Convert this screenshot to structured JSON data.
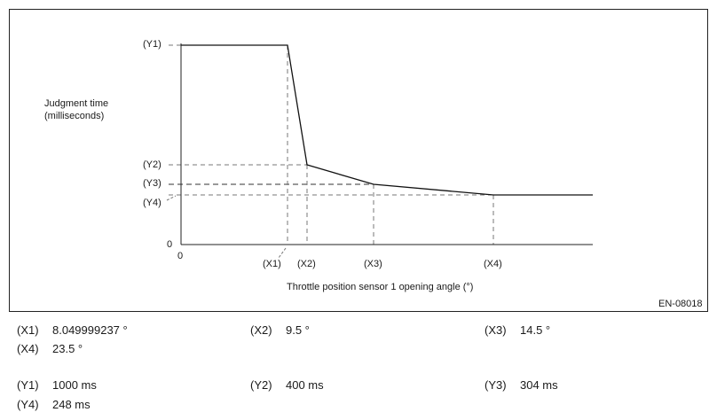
{
  "chart_data": {
    "type": "line",
    "figure_id": "EN-08018",
    "ylabel_lines": [
      "Judgment time",
      "(milliseconds)"
    ],
    "xlabel": "Throttle position sensor 1 opening angle (°)",
    "origin_x_label": "0",
    "origin_y_label": "0",
    "x_tick_labels": [
      "(X1)",
      "(X2)",
      "(X3)",
      "(X4)"
    ],
    "y_tick_labels": [
      "(Y1)",
      "(Y2)",
      "(Y3)",
      "(Y4)"
    ],
    "x_ticks": [
      8.049999237,
      9.5,
      14.5,
      23.5
    ],
    "y_ticks": [
      1000,
      400,
      304,
      248
    ],
    "xlim": [
      0,
      31
    ],
    "ylim": [
      0,
      1000
    ],
    "series": [
      {
        "points": [
          {
            "x": 0,
            "y": 1000
          },
          {
            "x": 8.049999237,
            "y": 1000
          },
          {
            "x": 9.5,
            "y": 400
          },
          {
            "x": 14.5,
            "y": 304
          },
          {
            "x": 23.5,
            "y": 248
          },
          {
            "x": 31,
            "y": 248
          }
        ]
      }
    ]
  },
  "legend": {
    "rows": [
      [
        {
          "key": "(X1)",
          "value": "8.049999237 °"
        },
        {
          "key": "(X2)",
          "value": "9.5 °"
        },
        {
          "key": "(X3)",
          "value": "14.5 °"
        }
      ],
      [
        {
          "key": "(X4)",
          "value": "23.5 °"
        }
      ],
      [
        {
          "key": "(Y1)",
          "value": "1000 ms"
        },
        {
          "key": "(Y2)",
          "value": "400 ms"
        },
        {
          "key": "(Y3)",
          "value": "304 ms"
        }
      ],
      [
        {
          "key": "(Y4)",
          "value": "248 ms"
        }
      ]
    ]
  }
}
